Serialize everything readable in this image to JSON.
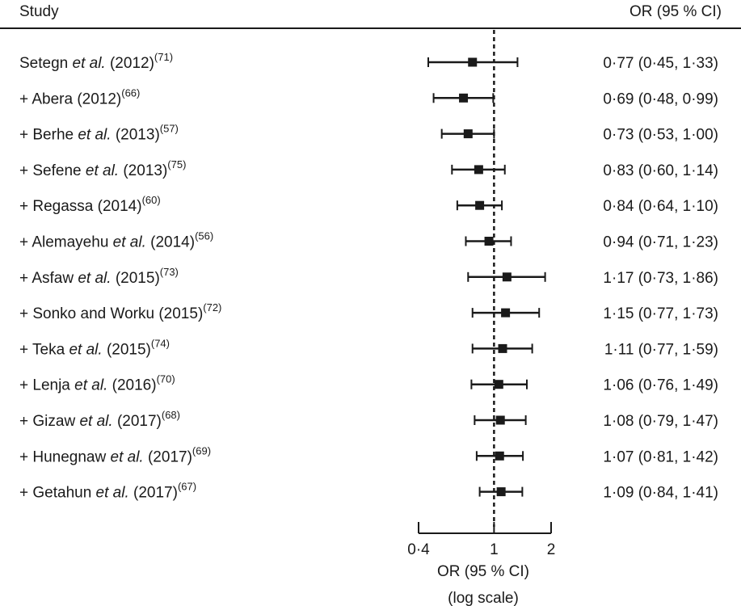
{
  "header": {
    "study_label": "Study",
    "ci_label": "OR (95 % CI)"
  },
  "axis": {
    "title_line1": "OR (95 % CI)",
    "title_line2": "(log scale)"
  },
  "chart_data": {
    "type": "forest",
    "scale": "log",
    "xlim": [
      0.4,
      2
    ],
    "reference_line": 1,
    "ticks": [
      {
        "value": 0.4,
        "label": "0·4"
      },
      {
        "value": 1,
        "label": "1"
      },
      {
        "value": 2,
        "label": "2"
      }
    ],
    "studies": [
      {
        "prefix": "",
        "author": "Setegn",
        "etal": true,
        "suffix": "",
        "year": "(2012)",
        "ref": "(71)",
        "or": 0.77,
        "lo": 0.45,
        "hi": 1.33,
        "ci_text": "0·77 (0·45, 1·33)"
      },
      {
        "prefix": "+ ",
        "author": "Abera",
        "etal": false,
        "suffix": "",
        "year": "(2012)",
        "ref": "(66)",
        "or": 0.69,
        "lo": 0.48,
        "hi": 0.99,
        "ci_text": "0·69 (0·48, 0·99)"
      },
      {
        "prefix": "+ ",
        "author": "Berhe",
        "etal": true,
        "suffix": "",
        "year": "(2013)",
        "ref": "(57)",
        "or": 0.73,
        "lo": 0.53,
        "hi": 1.0,
        "ci_text": "0·73 (0·53, 1·00)"
      },
      {
        "prefix": "+ ",
        "author": "Sefene",
        "etal": true,
        "suffix": "",
        "year": "(2013)",
        "ref": "(75)",
        "or": 0.83,
        "lo": 0.6,
        "hi": 1.14,
        "ci_text": "0·83 (0·60, 1·14)"
      },
      {
        "prefix": "+ ",
        "author": "Regassa",
        "etal": false,
        "suffix": "",
        "year": "(2014)",
        "ref": "(60)",
        "or": 0.84,
        "lo": 0.64,
        "hi": 1.1,
        "ci_text": "0·84 (0·64, 1·10)"
      },
      {
        "prefix": "+ ",
        "author": "Alemayehu",
        "etal": true,
        "suffix": "",
        "year": "(2014)",
        "ref": "(56)",
        "or": 0.94,
        "lo": 0.71,
        "hi": 1.23,
        "ci_text": "0·94 (0·71, 1·23)"
      },
      {
        "prefix": "+ ",
        "author": "Asfaw",
        "etal": true,
        "suffix": "",
        "year": "(2015)",
        "ref": "(73)",
        "or": 1.17,
        "lo": 0.73,
        "hi": 1.86,
        "ci_text": "1·17 (0·73, 1·86)"
      },
      {
        "prefix": "+ ",
        "author": "Sonko and Worku",
        "etal": false,
        "suffix": "",
        "year": "(2015)",
        "ref": "(72)",
        "or": 1.15,
        "lo": 0.77,
        "hi": 1.73,
        "ci_text": "1·15 (0·77, 1·73)"
      },
      {
        "prefix": "+ ",
        "author": "Teka",
        "etal": true,
        "suffix": "",
        "year": "(2015)",
        "ref": "(74)",
        "or": 1.11,
        "lo": 0.77,
        "hi": 1.59,
        "ci_text": "1·11 (0·77, 1·59)"
      },
      {
        "prefix": "+ ",
        "author": "Lenja",
        "etal": true,
        "suffix": "",
        "year": "(2016)",
        "ref": "(70)",
        "or": 1.06,
        "lo": 0.76,
        "hi": 1.49,
        "ci_text": "1·06 (0·76, 1·49)"
      },
      {
        "prefix": "+ ",
        "author": "Gizaw",
        "etal": true,
        "suffix": "",
        "year": "(2017)",
        "ref": "(68)",
        "or": 1.08,
        "lo": 0.79,
        "hi": 1.47,
        "ci_text": "1·08 (0·79, 1·47)"
      },
      {
        "prefix": "+ ",
        "author": "Hunegnaw",
        "etal": true,
        "suffix": "",
        "year": "(2017)",
        "ref": "(69)",
        "or": 1.07,
        "lo": 0.81,
        "hi": 1.42,
        "ci_text": "1·07 (0·81, 1·42)"
      },
      {
        "prefix": "+ ",
        "author": "Getahun",
        "etal": true,
        "suffix": "",
        "year": "(2017)",
        "ref": "(67)",
        "or": 1.09,
        "lo": 0.84,
        "hi": 1.41,
        "ci_text": "1·09 (0·84, 1·41)"
      }
    ],
    "etal_text": "et al.",
    "marker_color": "#1a1a1a",
    "grid": false,
    "legend": "none"
  }
}
